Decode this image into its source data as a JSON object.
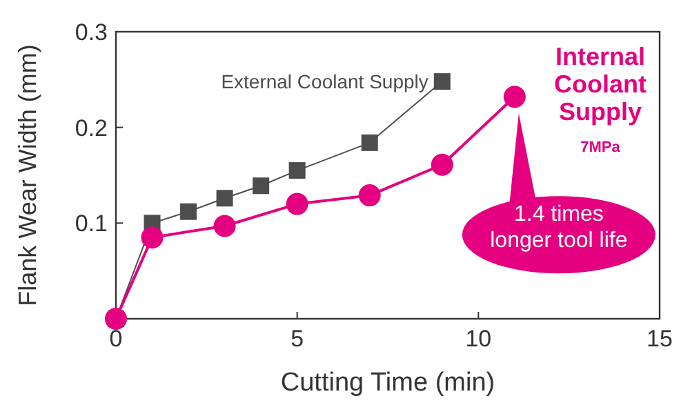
{
  "chart_data": {
    "type": "line",
    "xlabel": "Cutting Time (min)",
    "ylabel": "Flank Wear Width (mm)",
    "xlim": [
      0,
      15
    ],
    "ylim": [
      0,
      0.3
    ],
    "xticks": [
      0,
      5,
      10,
      15
    ],
    "yticks": [
      0.1,
      0.2,
      0.3
    ],
    "grid": false,
    "series": [
      {
        "name": "External Coolant Supply",
        "color": "#4d4d4d",
        "marker": "square",
        "x": [
          0,
          1,
          2,
          3,
          4,
          5,
          7,
          9
        ],
        "values": [
          0,
          0.1,
          0.112,
          0.126,
          0.139,
          0.155,
          0.184,
          0.248
        ]
      },
      {
        "name": "Internal Coolant Supply",
        "color": "#e4007f",
        "marker": "circle",
        "x": [
          0,
          1,
          3,
          5,
          7,
          9,
          11
        ],
        "values": [
          0,
          0.085,
          0.097,
          0.12,
          0.129,
          0.161,
          0.232
        ]
      }
    ],
    "annotations": [
      "7MPa",
      "1.4 times\nlonger tool life"
    ]
  }
}
